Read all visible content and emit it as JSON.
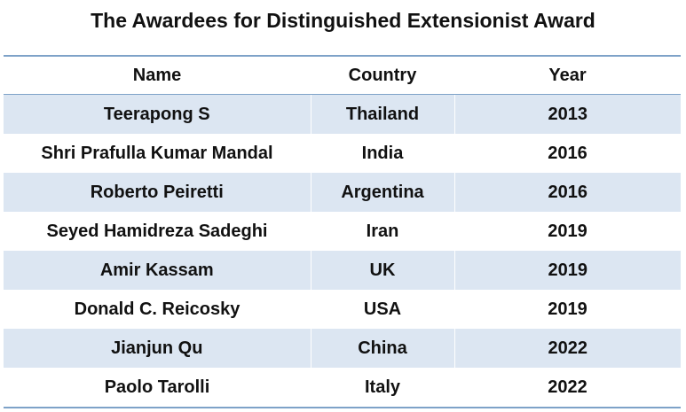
{
  "title": "The Awardees for Distinguished Extensionist Award",
  "table": {
    "headers": [
      "Name",
      "Country",
      "Year"
    ],
    "rows": [
      [
        "Teerapong S",
        "Thailand",
        "2013"
      ],
      [
        "Shri Prafulla Kumar Mandal",
        "India",
        "2016"
      ],
      [
        "Roberto Peiretti",
        "Argentina",
        "2016"
      ],
      [
        "Seyed Hamidreza Sadeghi",
        "Iran",
        "2019"
      ],
      [
        "Amir Kassam",
        "UK",
        "2019"
      ],
      [
        "Donald C. Reicosky",
        "USA",
        "2019"
      ],
      [
        "Jianjun Qu",
        "China",
        "2022"
      ],
      [
        "Paolo Tarolli",
        "Italy",
        "2022"
      ]
    ]
  },
  "colors": {
    "row_band": "#dce6f2",
    "rule": "#7ea2c8"
  }
}
